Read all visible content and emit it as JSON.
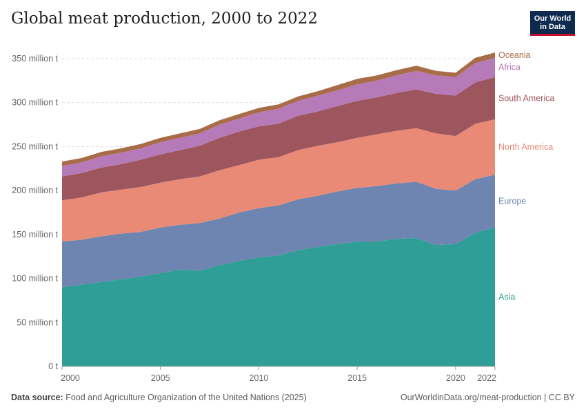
{
  "header": {
    "title": "Global meat production, 2000 to 2022"
  },
  "logo": {
    "line1": "Our World",
    "line2": "in Data"
  },
  "footer": {
    "source_label": "Data source:",
    "source_text": "Food and Agriculture Organization of the United Nations (2025)",
    "url": "OurWorldinData.org/meat-production | CC BY"
  },
  "chart_data": {
    "type": "area",
    "stacked": true,
    "title": "Global meat production, 2000 to 2022",
    "x": [
      2000,
      2001,
      2002,
      2003,
      2004,
      2005,
      2006,
      2007,
      2008,
      2009,
      2010,
      2011,
      2012,
      2013,
      2014,
      2015,
      2016,
      2017,
      2018,
      2019,
      2020,
      2021,
      2022
    ],
    "x_ticks": [
      "2000",
      "2005",
      "2010",
      "2015",
      "2020",
      "2022"
    ],
    "y_ticks": [
      "0 t",
      "50 million t",
      "100 million t",
      "150 million t",
      "200 million t",
      "250 million t",
      "300 million t",
      "350 million t"
    ],
    "ylim": [
      0,
      350000000
    ],
    "grid": true,
    "series": [
      {
        "name": "Asia",
        "color": "#2e9e96",
        "values": [
          90,
          93,
          96,
          99,
          102,
          106,
          110,
          109,
          115,
          120,
          124,
          126,
          132,
          136,
          139,
          142,
          142,
          145,
          146,
          138,
          139,
          152,
          158
        ]
      },
      {
        "name": "Europe",
        "color": "#6d85b0",
        "values": [
          52,
          51,
          52,
          52,
          51,
          52,
          51,
          54,
          53,
          55,
          56,
          57,
          58,
          58,
          60,
          61,
          63,
          63,
          64,
          64,
          61,
          61,
          60
        ]
      },
      {
        "name": "North America",
        "color": "#e88a76",
        "values": [
          47,
          48,
          50,
          50,
          51,
          51,
          52,
          53,
          55,
          54,
          55,
          55,
          56,
          57,
          56,
          57,
          59,
          60,
          61,
          63,
          62,
          63,
          63
        ]
      },
      {
        "name": "South America",
        "color": "#9e565e",
        "values": [
          27,
          28,
          28,
          29,
          31,
          32,
          33,
          35,
          37,
          38,
          38,
          38,
          39,
          39,
          41,
          42,
          42,
          43,
          44,
          45,
          46,
          47,
          48
        ]
      },
      {
        "name": "Africa",
        "color": "#b57ab7",
        "values": [
          12,
          12,
          13,
          13,
          13,
          14,
          14,
          14,
          15,
          15,
          16,
          17,
          17,
          18,
          18,
          19,
          19,
          20,
          21,
          21,
          21,
          22,
          22
        ]
      },
      {
        "name": "Oceania",
        "color": "#a86d48",
        "values": [
          5,
          5,
          5,
          5,
          5,
          5,
          5,
          5,
          5,
          5,
          5,
          5,
          5,
          5,
          6,
          6,
          6,
          6,
          6,
          5,
          5,
          6,
          6
        ]
      }
    ],
    "units": "million t"
  }
}
